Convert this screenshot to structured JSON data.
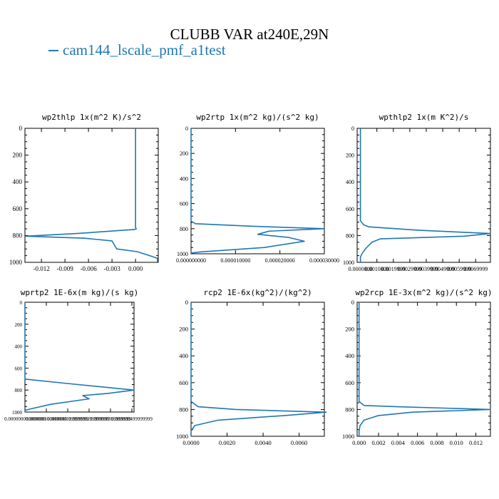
{
  "title": "CLUBB VAR at240E,29N",
  "legend": {
    "label": "cam144_lscale_pmf_a1test",
    "color": "#1f77b4"
  },
  "line_color": "#1f77b4",
  "chart_data": [
    {
      "type": "line",
      "title": "wp2thlp  1x(m^2 K)/s^2",
      "ylim": [
        1000,
        0
      ],
      "xlim": [
        -0.0141,
        0.0029
      ],
      "yticks": [
        "0",
        "200",
        "400",
        "600",
        "800",
        "1000"
      ],
      "xticks": [
        {
          "v": -0.012,
          "label": "-0.012"
        },
        {
          "v": -0.009,
          "label": "-0.009"
        },
        {
          "v": -0.006,
          "label": "-0.006"
        },
        {
          "v": -0.003,
          "label": "-0.003"
        },
        {
          "v": 0.0,
          "label": "0.000"
        }
      ],
      "series": [
        {
          "x": [
            0,
            0,
            0,
            0,
            0,
            0.0001,
            -0.0001,
            -0.0015,
            -0.0075,
            -0.014,
            -0.0065,
            -0.003,
            -0.0027,
            -0.0024,
            0.0002,
            0.0018,
            0.0028,
            0.0028
          ],
          "y": [
            0,
            200,
            400,
            600,
            740,
            750,
            755,
            760,
            785,
            805,
            820,
            840,
            870,
            900,
            920,
            950,
            970,
            1000
          ]
        }
      ]
    },
    {
      "type": "line",
      "title": "wp2rtp  1x(m^2 kg)/(s^2 kg)",
      "ylim": [
        1000,
        0
      ],
      "xlim": [
        0,
        3e-05
      ],
      "yticks": [
        "0",
        "200",
        "400",
        "600",
        "800",
        "1000"
      ],
      "xticks": [
        {
          "v": 0,
          "label": "0.000000000"
        },
        {
          "v": 1e-05,
          "label": "0.000010000"
        },
        {
          "v": 2e-05,
          "label": "0.000020000"
        },
        {
          "v": 3e-05,
          "label": "0.000030000"
        }
      ],
      "series": [
        {
          "x": [
            0,
            0,
            1e-06,
            1.35e-05,
            3e-05,
            1.75e-05,
            1.5e-05,
            2.2e-05,
            2.55e-05,
            1.65e-05,
            2e-06,
            0,
            0
          ],
          "y": [
            0,
            740,
            760,
            780,
            800,
            820,
            845,
            870,
            900,
            950,
            985,
            995,
            1000
          ]
        }
      ]
    },
    {
      "type": "line",
      "title": "wpthlp2  1x(m K^2)/s",
      "ylim": [
        1000,
        0
      ],
      "xlim": [
        -0.0002,
        0.0079
      ],
      "yticks": [
        "0",
        "200",
        "400",
        "600",
        "800",
        "1000"
      ],
      "xticks": [
        {
          "v": 0.0,
          "label": "0.0000000"
        },
        {
          "v": 0.001,
          "label": "0.0010000"
        },
        {
          "v": 0.002,
          "label": "0.0019999"
        },
        {
          "v": 0.003,
          "label": "0.0029999"
        },
        {
          "v": 0.004,
          "label": "0.0039999"
        },
        {
          "v": 0.005,
          "label": "0.0049999"
        },
        {
          "v": 0.006,
          "label": "0.0059999"
        },
        {
          "v": 0.007,
          "label": "0.0069999"
        }
      ],
      "series": [
        {
          "x": [
            0,
            0,
            0.0002,
            0.0005,
            0.0035,
            0.0079,
            0.0063,
            0.0012,
            0.0007,
            0.0003,
            0.0001,
            0,
            0
          ],
          "y": [
            0,
            690,
            720,
            735,
            760,
            785,
            805,
            825,
            850,
            900,
            935,
            960,
            1000
          ]
        }
      ]
    },
    {
      "type": "line",
      "title": "wprtp2  1E-6x(m kg)/(s kg)",
      "ylim": [
        1000,
        0
      ],
      "xlim": [
        0,
        5.1e-07
      ],
      "yticks": [
        "0",
        "200",
        "400",
        "600",
        "800",
        "1000"
      ],
      "xticks": [
        {
          "v": 0,
          "label": "0.000000000000000"
        },
        {
          "v": 1e-07,
          "label": "0.000000100000000"
        },
        {
          "v": 2e-07,
          "label": "0.000000199999999"
        },
        {
          "v": 3e-07,
          "label": "0.000000299999999"
        },
        {
          "v": 4e-07,
          "label": "0.000000399999999"
        },
        {
          "v": 5e-07,
          "label": "0.000000499999999"
        }
      ],
      "series": [
        {
          "x": [
            0,
            0,
            2e-07,
            5.1e-07,
            3.9e-07,
            2.7e-07,
            3e-07,
            1.2e-07,
            3e-08,
            0,
            0
          ],
          "y": [
            0,
            700,
            740,
            800,
            830,
            850,
            880,
            930,
            970,
            985,
            1000
          ]
        }
      ]
    },
    {
      "type": "line",
      "title": "rcp2  1E-6x(kg^2)/(kg^2)",
      "ylim": [
        1000,
        0
      ],
      "xlim": [
        0,
        0.0074
      ],
      "yticks": [
        "0",
        "200",
        "400",
        "600",
        "800",
        "1000"
      ],
      "xticks": [
        {
          "v": 0,
          "label": "0.0000"
        },
        {
          "v": 0.002,
          "label": "0.0020"
        },
        {
          "v": 0.004,
          "label": "0.0040"
        },
        {
          "v": 0.006,
          "label": "0.0060"
        }
      ],
      "series": [
        {
          "x": [
            0,
            0,
            0.0004,
            0.0025,
            0.0075,
            0.0052,
            0.0015,
            0.0002,
            0,
            0
          ],
          "y": [
            0,
            740,
            780,
            800,
            820,
            845,
            880,
            920,
            960,
            1000
          ]
        }
      ]
    },
    {
      "type": "line",
      "title": "wp2rcp  1E-3x(m^2 kg)/(s^2 kg)",
      "ylim": [
        1000,
        0
      ],
      "xlim": [
        -0.0002,
        0.0135
      ],
      "yticks": [
        "0",
        "200",
        "400",
        "600",
        "800",
        "1000"
      ],
      "xticks": [
        {
          "v": 0.0,
          "label": "0.000"
        },
        {
          "v": 0.002,
          "label": "0.002"
        },
        {
          "v": 0.004,
          "label": "0.004"
        },
        {
          "v": 0.006,
          "label": "0.006"
        },
        {
          "v": 0.008,
          "label": "0.008"
        },
        {
          "v": 0.01,
          "label": "0.010"
        },
        {
          "v": 0.012,
          "label": "0.012"
        }
      ],
      "series": [
        {
          "x": [
            0,
            0,
            0.0005,
            0.004,
            0.0135,
            0.0055,
            0.002,
            0.0005,
            0.0001,
            0,
            0
          ],
          "y": [
            0,
            740,
            770,
            780,
            800,
            820,
            845,
            880,
            920,
            960,
            1000
          ]
        }
      ]
    }
  ]
}
